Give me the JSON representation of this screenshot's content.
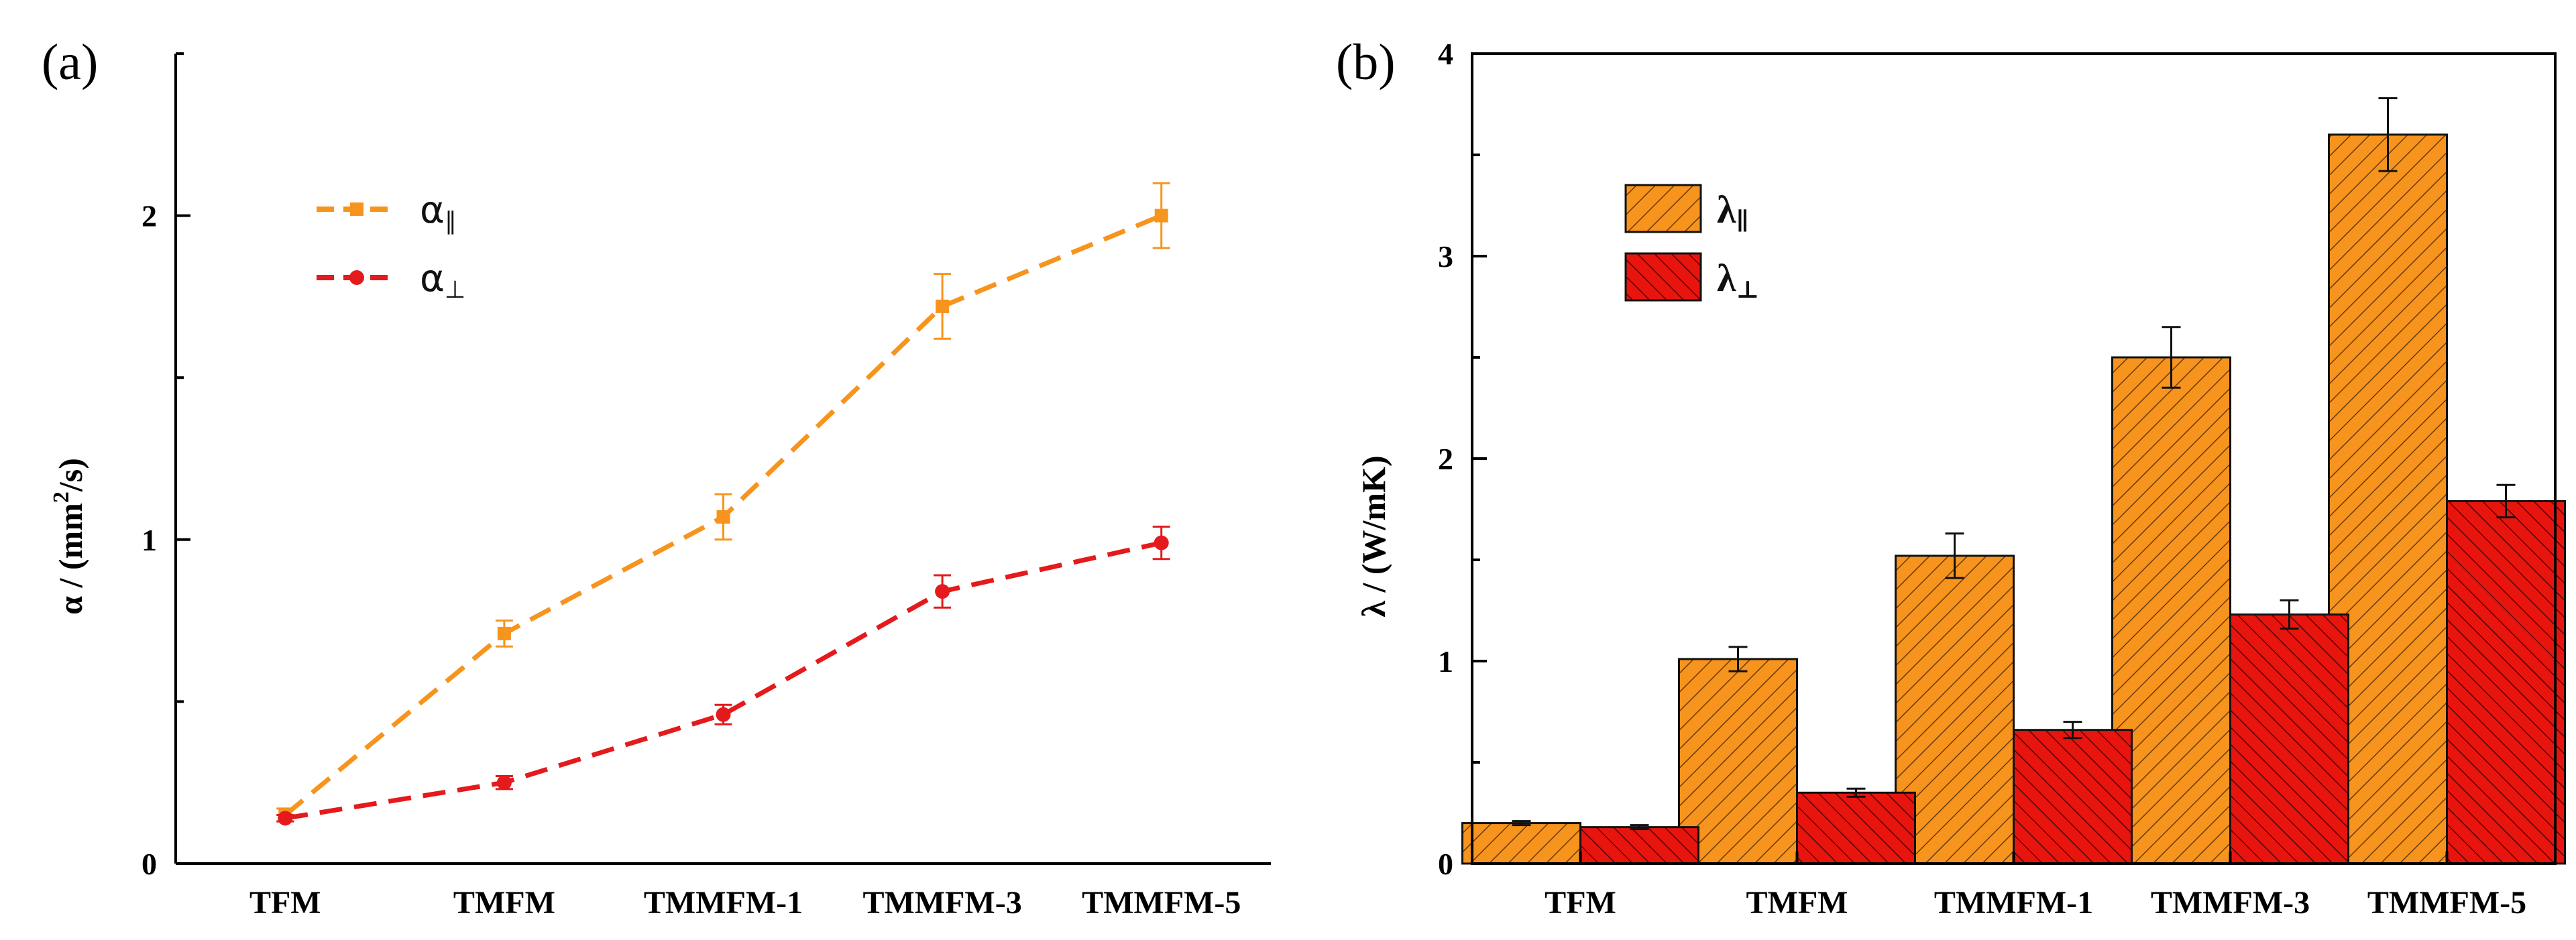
{
  "colors": {
    "orange": "#f7941d",
    "red": "#e41a1c",
    "bar_orange": "#f7941d",
    "bar_red": "#e8150f",
    "axis": "#000000"
  },
  "chart_data": [
    {
      "panel_label": "(a)",
      "type": "line",
      "categories": [
        "TFM",
        "TMFM",
        "TMMFM-1",
        "TMMFM-3",
        "TMMFM-5"
      ],
      "ylabel_symbol": "α",
      "ylabel_unit_pre": " / (mm",
      "ylabel_sup": "2",
      "ylabel_unit_post": "/s)",
      "ylim": [
        0,
        2.5
      ],
      "yticks": [
        0,
        1,
        2
      ],
      "yticks_minor": [
        0.5,
        1.5,
        2.5
      ],
      "series": [
        {
          "name": "α∥",
          "legend_base": "α",
          "legend_sub": "∥",
          "marker": "square",
          "values": [
            0.15,
            0.71,
            1.07,
            1.72,
            2.0
          ],
          "errors": [
            0.02,
            0.04,
            0.07,
            0.1,
            0.1
          ]
        },
        {
          "name": "α⊥",
          "legend_base": "α",
          "legend_sub": "⊥",
          "marker": "circle",
          "values": [
            0.14,
            0.25,
            0.46,
            0.84,
            0.99
          ],
          "errors": [
            0.01,
            0.02,
            0.03,
            0.05,
            0.05
          ]
        }
      ]
    },
    {
      "panel_label": "(b)",
      "type": "bar",
      "categories": [
        "TFM",
        "TMFM",
        "TMMFM-1",
        "TMMFM-3",
        "TMMFM-5"
      ],
      "ylabel": "λ / (W/mK)",
      "ylim": [
        0,
        4
      ],
      "yticks": [
        0,
        1,
        2,
        3,
        4
      ],
      "series": [
        {
          "name": "λ∥",
          "legend_base": "λ",
          "legend_sub": "∥",
          "values": [
            0.2,
            1.01,
            1.52,
            2.5,
            3.6
          ],
          "errors": [
            0.01,
            0.06,
            0.11,
            0.15,
            0.18
          ]
        },
        {
          "name": "λ⊥",
          "legend_base": "λ",
          "legend_sub": "⊥",
          "values": [
            0.18,
            0.35,
            0.66,
            1.23,
            1.79
          ],
          "errors": [
            0.01,
            0.02,
            0.04,
            0.07,
            0.08
          ]
        }
      ]
    }
  ]
}
